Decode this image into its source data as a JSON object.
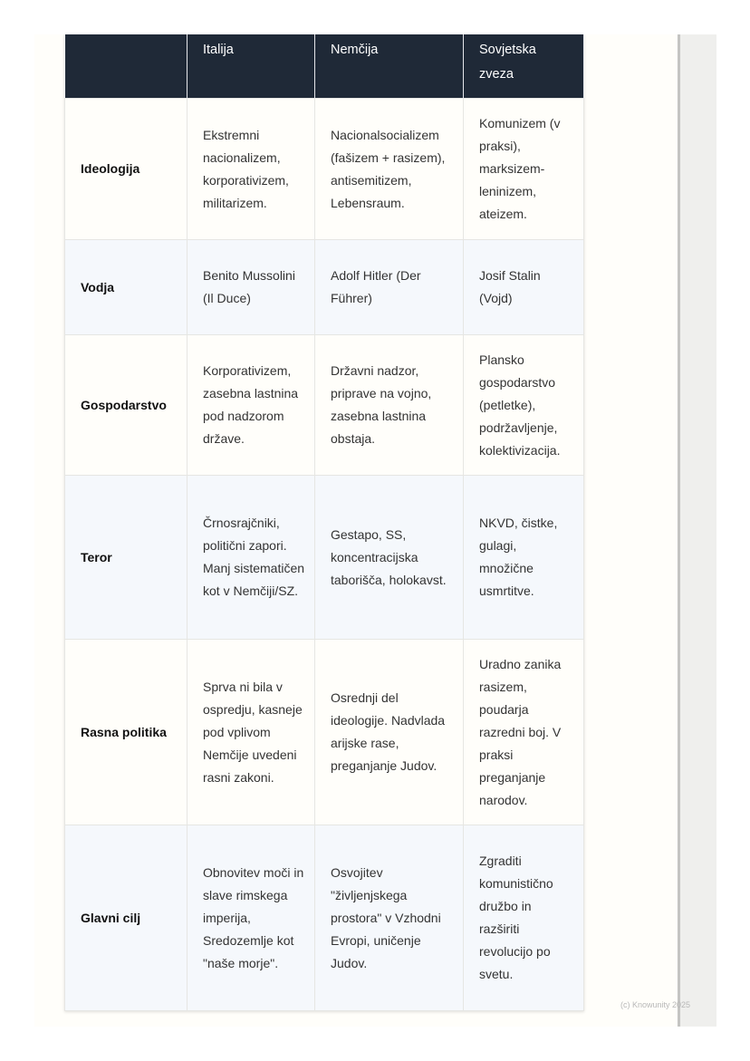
{
  "table": {
    "headers": [
      "",
      "Italija",
      "Nemčija",
      "Sovjetska zveza"
    ],
    "rows": [
      {
        "label": "Ideologija",
        "cells": [
          "Ekstremni nacionalizem, korporativizem, militarizem.",
          "Nacionalsocializem (fašizem + rasizem), antisemitizem, Lebensraum.",
          "Komunizem (v praksi), marksizem-leninizem, ateizem."
        ]
      },
      {
        "label": "Vodja",
        "cells": [
          "Benito Mussolini (Il Duce)",
          "Adolf Hitler (Der Führer)",
          "Josif Stalin (Vojd)"
        ]
      },
      {
        "label": "Gospodarstvo",
        "cells": [
          "Korporativizem, zasebna lastnina pod nadzorom države.",
          "Državni nadzor, priprave na vojno, zasebna lastnina obstaja.",
          "Plansko gospodarstvo (petletke), podržavljenje, kolektivizacija."
        ]
      },
      {
        "label": "Teror",
        "cells": [
          "Črnosrajčniki, politični zapori. Manj sistematičen kot v Nemčiji/SZ.",
          "Gestapo, SS, koncentracijska taborišča, holokavst.",
          "NKVD, čistke, gulagi, množične usmrtitve."
        ]
      },
      {
        "label": "Rasna politika",
        "cells": [
          "Sprva ni bila v ospredju, kasneje pod vplivom Nemčije uvedeni rasni zakoni.",
          "Osrednji del ideologije. Nadvlada arijske rase, preganjanje Judov.",
          "Uradno zanika rasizem, poudarja razredni boj. V praksi preganjanje narodov."
        ]
      },
      {
        "label": "Glavni cilj",
        "cells": [
          "Obnovitev moči in slave rimskega imperija, Sredozemlje kot \"naše morje\".",
          "Osvojitev \"življenjskega prostora\" v Vzhodni Evropi, uničenje Judov.",
          "Zgraditi komunistično družbo in razširiti revolucijo po svetu."
        ]
      }
    ]
  },
  "footer": {
    "copyright": "(c) Knowunity 2025"
  }
}
